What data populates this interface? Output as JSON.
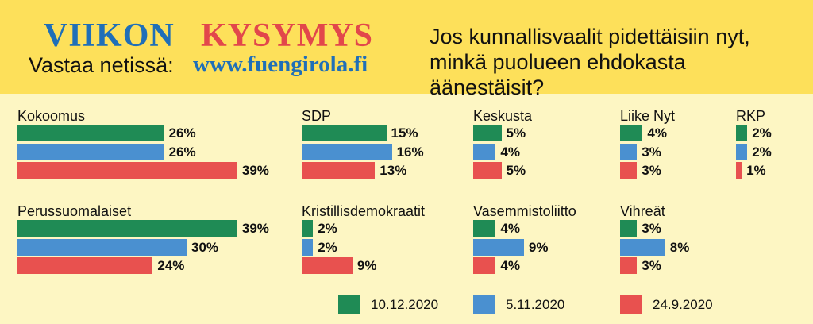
{
  "header": {
    "brand_word1": "VIIKON",
    "brand_word2": "KYSYMYS",
    "vastaa": "Vastaa netissä:",
    "url": "www.fuengirola.fi",
    "question": "Jos kunnallisvaalit pidettäisiin nyt, minkä puolueen ehdokasta äänestäisit?"
  },
  "colors": {
    "header_bg": "#fde05a",
    "body_bg": "#fdf6c3",
    "green": "#1f8b55",
    "blue": "#4a90d0",
    "red": "#e8514f",
    "brand_blue": "#1f6fb8",
    "brand_red": "#e2474b"
  },
  "chart_data": {
    "type": "bar",
    "orientation": "horizontal",
    "unit": "%",
    "series": [
      {
        "name": "10.12.2020",
        "color": "#1f8b55"
      },
      {
        "name": "5.11.2020",
        "color": "#4a90d0"
      },
      {
        "name": "24.9.2020",
        "color": "#e8514f"
      }
    ],
    "categories": [
      {
        "party": "Kokoomus",
        "values": [
          26,
          26,
          39
        ]
      },
      {
        "party": "SDP",
        "values": [
          15,
          16,
          13
        ]
      },
      {
        "party": "Keskusta",
        "values": [
          5,
          4,
          5
        ]
      },
      {
        "party": "Liike Nyt",
        "values": [
          4,
          3,
          3
        ]
      },
      {
        "party": "RKP",
        "values": [
          2,
          2,
          1
        ]
      },
      {
        "party": "Perussuomalaiset",
        "values": [
          39,
          30,
          24
        ]
      },
      {
        "party": "Kristillisdemokraatit",
        "values": [
          2,
          2,
          9
        ]
      },
      {
        "party": "Vasemmistoliitto",
        "values": [
          4,
          9,
          4
        ]
      },
      {
        "party": "Vihreät",
        "values": [
          3,
          8,
          3
        ]
      }
    ]
  }
}
